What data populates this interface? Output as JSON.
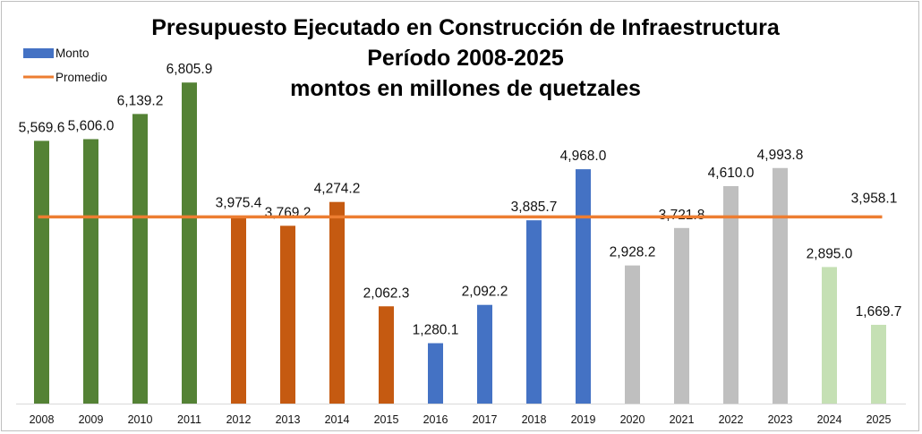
{
  "chart_data": {
    "type": "bar",
    "title": [
      "Presupuesto Ejecutado en Construcción de Infraestructura",
      "Período 2008-2025",
      "montos en millones de quetzales"
    ],
    "categories": [
      "2008",
      "2009",
      "2010",
      "2011",
      "2012",
      "2013",
      "2014",
      "2015",
      "2016",
      "2017",
      "2018",
      "2019",
      "2020",
      "2021",
      "2022",
      "2023",
      "2024",
      "2025"
    ],
    "series": [
      {
        "name": "Monto",
        "values": [
          5569.6,
          5606.0,
          6139.2,
          6805.9,
          3975.4,
          3769.2,
          4274.2,
          2062.3,
          1280.1,
          2092.2,
          3885.7,
          4968.0,
          2928.2,
          3721.8,
          4610.0,
          4993.8,
          2895.0,
          1669.7
        ],
        "labels": [
          "5,569.6",
          "5,606.0",
          "6,139.2",
          "6,805.9",
          "3,975.4",
          "3,769.2",
          "4,274.2",
          "2,062.3",
          "1,280.1",
          "2,092.2",
          "3,885.7",
          "4,968.0",
          "2,928.2",
          "3,721.8",
          "4,610.0",
          "4,993.8",
          "2,895.0",
          "1,669.7"
        ],
        "colors": [
          "#548235",
          "#548235",
          "#548235",
          "#548235",
          "#c55a11",
          "#c55a11",
          "#c55a11",
          "#c55a11",
          "#4472c4",
          "#4472c4",
          "#4472c4",
          "#4472c4",
          "#bfbfbf",
          "#bfbfbf",
          "#bfbfbf",
          "#bfbfbf",
          "#c5e0b4",
          "#c5e0b4"
        ],
        "legend_color": "#4472c4"
      },
      {
        "name": "Promedio",
        "type": "line",
        "value": 3958.1,
        "label": "3,958.1",
        "color": "#ed7d31"
      }
    ],
    "ylim": [
      0,
      7000
    ],
    "grid": false,
    "legend": "top-left"
  }
}
